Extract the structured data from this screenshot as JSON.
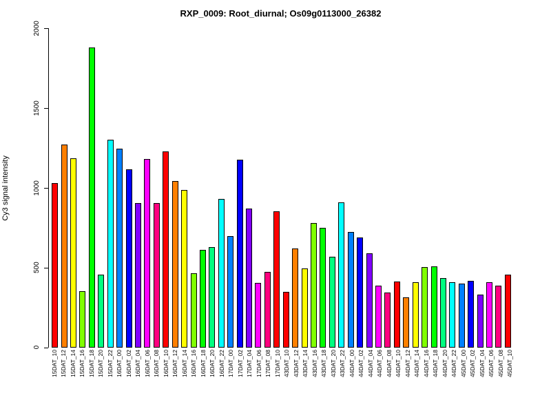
{
  "figure": {
    "title": "RXP_0009: Root_diurnal; Os09g0113000_26382",
    "y_axis_label": "Cy3 signal intensity"
  },
  "chart_data": {
    "type": "bar",
    "title": "RXP_0009: Root_diurnal; Os09g0113000_26382",
    "xlabel": "",
    "ylabel": "Cy3 signal intensity",
    "ylim": [
      0,
      2000
    ],
    "yticks": [
      0,
      500,
      1000,
      1500,
      2000
    ],
    "grid": false,
    "legend": "none",
    "bar_border_color": "#000000",
    "palette_by_hour": {
      "10": "#FF0000",
      "12": "#FF8000",
      "14": "#FFFF00",
      "16": "#80FF00",
      "18": "#00FF00",
      "20": "#00FF80",
      "22": "#00FFFF",
      "00": "#0080FF",
      "02": "#0000FF",
      "04": "#8000FF",
      "06": "#FF00FF",
      "08": "#FF0080"
    },
    "categories": [
      "15DAT_10",
      "15DAT_12",
      "15DAT_14",
      "15DAT_16",
      "15DAT_18",
      "15DAT_20",
      "15DAT_22",
      "16DAT_00",
      "16DAT_02",
      "16DAT_04",
      "16DAT_06",
      "16DAT_08",
      "16DAT_10",
      "16DAT_12",
      "16DAT_14",
      "16DAT_16",
      "16DAT_18",
      "16DAT_20",
      "16DAT_22",
      "17DAT_00",
      "17DAT_02",
      "17DAT_04",
      "17DAT_06",
      "17DAT_08",
      "17DAT_10",
      "43DAT_10",
      "43DAT_12",
      "43DAT_14",
      "43DAT_16",
      "43DAT_18",
      "43DAT_20",
      "43DAT_22",
      "44DAT_00",
      "44DAT_02",
      "44DAT_04",
      "44DAT_06",
      "44DAT_08",
      "44DAT_10",
      "44DAT_12",
      "44DAT_14",
      "44DAT_16",
      "44DAT_18",
      "44DAT_20",
      "44DAT_22",
      "45DAT_00",
      "45DAT_02",
      "45DAT_04",
      "45DAT_06",
      "45DAT_08",
      "45DAT_10"
    ],
    "values": [
      1030,
      1270,
      1185,
      355,
      1880,
      455,
      1300,
      1245,
      1115,
      905,
      1180,
      905,
      1230,
      1045,
      985,
      465,
      610,
      630,
      930,
      700,
      1175,
      870,
      405,
      475,
      855,
      350,
      620,
      495,
      780,
      750,
      570,
      910,
      725,
      690,
      590,
      390,
      345,
      415,
      315,
      410,
      505,
      510,
      435,
      410,
      400,
      420,
      330,
      410,
      390,
      455
    ],
    "colors": [
      "#FF0000",
      "#FF8000",
      "#FFFF00",
      "#80FF00",
      "#00FF00",
      "#00FF80",
      "#00FFFF",
      "#0080FF",
      "#0000FF",
      "#8000FF",
      "#FF00FF",
      "#FF0080",
      "#FF0000",
      "#FF8000",
      "#FFFF00",
      "#80FF00",
      "#00FF00",
      "#00FF80",
      "#00FFFF",
      "#0080FF",
      "#0000FF",
      "#8000FF",
      "#FF00FF",
      "#FF0080",
      "#FF0000",
      "#FF0000",
      "#FF8000",
      "#FFFF00",
      "#80FF00",
      "#00FF00",
      "#00FF80",
      "#00FFFF",
      "#0080FF",
      "#0000FF",
      "#8000FF",
      "#FF00FF",
      "#FF0080",
      "#FF0000",
      "#FF8000",
      "#FFFF00",
      "#80FF00",
      "#00FF00",
      "#00FF80",
      "#00FFFF",
      "#0080FF",
      "#0000FF",
      "#8000FF",
      "#FF00FF",
      "#FF0080",
      "#FF0000"
    ]
  }
}
